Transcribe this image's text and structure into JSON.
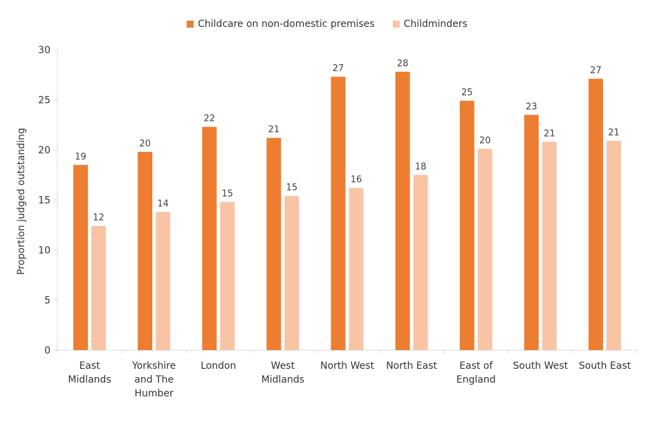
{
  "chart_data": {
    "type": "bar",
    "title": "",
    "xlabel": "",
    "ylabel": "Proportion judged outstanding",
    "ylim": [
      0,
      30
    ],
    "yticks": [
      0,
      5,
      10,
      15,
      20,
      25,
      30
    ],
    "grid": false,
    "legend_position": "top",
    "categories": [
      [
        "East",
        "Midlands"
      ],
      [
        "Yorkshire",
        "and The",
        "Humber"
      ],
      [
        "London"
      ],
      [
        "West",
        "Midlands"
      ],
      [
        "North West"
      ],
      [
        "North East"
      ],
      [
        "East of",
        "England"
      ],
      [
        "South West"
      ],
      [
        "South East"
      ]
    ],
    "series": [
      {
        "name": "Childcare on non-domestic premises",
        "color": "#ED7D31",
        "values": [
          18.5,
          19.8,
          22.3,
          21.2,
          27.3,
          27.8,
          24.9,
          23.5,
          27.1
        ],
        "labels": [
          "19",
          "20",
          "22",
          "21",
          "27",
          "28",
          "25",
          "23",
          "27"
        ]
      },
      {
        "name": "Childminders",
        "color": "#F8C4A5",
        "values": [
          12.4,
          13.8,
          14.8,
          15.4,
          16.2,
          17.5,
          20.1,
          20.8,
          20.9
        ],
        "labels": [
          "12",
          "14",
          "15",
          "15",
          "16",
          "18",
          "20",
          "21",
          "21"
        ]
      }
    ]
  }
}
